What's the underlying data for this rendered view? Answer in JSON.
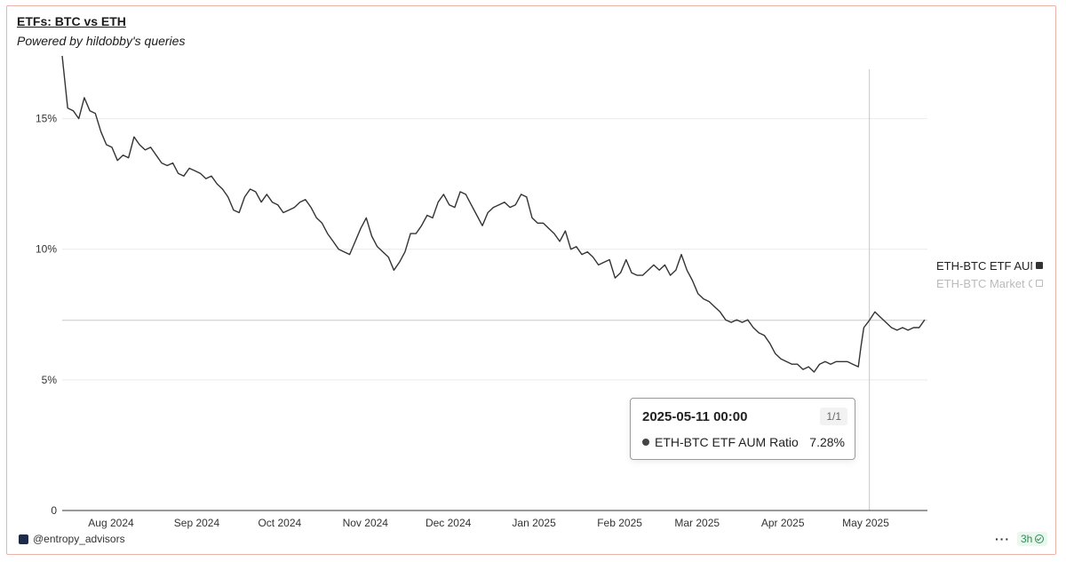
{
  "header": {
    "title": "ETFs: BTC vs ETH",
    "subtitle": "Powered by hildobby's queries"
  },
  "legend": {
    "items": [
      {
        "label": "ETH-BTC ETF AUM Ratio",
        "active": true
      },
      {
        "label": "ETH-BTC Market Cap Ratio",
        "active": false
      }
    ]
  },
  "tooltip": {
    "date": "2025-05-11 00:00",
    "page": "1/1",
    "series_name": "ETH-BTC ETF AUM Ratio",
    "value": "7.28%"
  },
  "footer": {
    "handle": "@entropy_advisors",
    "more": "···",
    "age": "3h"
  },
  "colors": {
    "line": "#333333",
    "grid": "#e9e9e9",
    "axis": "#333333",
    "crosshair": "#c8c8c8",
    "frame": "#eab4a8"
  },
  "chart_data": {
    "type": "line",
    "title": "ETFs: BTC vs ETH",
    "subtitle": "Powered by hildobby's queries",
    "xlabel": "",
    "ylabel": "",
    "ylim": [
      0,
      17.5
    ],
    "yticks": [
      0,
      5,
      10,
      15
    ],
    "ytick_labels": [
      "0",
      "5%",
      "10%",
      "15%"
    ],
    "xticks": [
      "2024-08-01",
      "2024-09-01",
      "2024-10-01",
      "2024-11-01",
      "2024-12-01",
      "2025-01-01",
      "2025-02-01",
      "2025-03-01",
      "2025-04-01",
      "2025-05-01"
    ],
    "xtick_labels": [
      "Aug 2024",
      "Sep 2024",
      "Oct 2024",
      "Nov 2024",
      "Dec 2024",
      "Jan 2025",
      "Feb 2025",
      "Mar 2025",
      "Apr 2025",
      "May 2025"
    ],
    "xlim": [
      "2024-07-23",
      "2025-06-01"
    ],
    "grid": true,
    "legend_position": "right",
    "series": [
      {
        "name": "ETH-BTC ETF AUM Ratio",
        "visible": true,
        "points": [
          [
            "2024-07-23",
            17.4
          ],
          [
            "2024-07-25",
            15.4
          ],
          [
            "2024-07-27",
            15.3
          ],
          [
            "2024-07-29",
            15.0
          ],
          [
            "2024-07-31",
            15.8
          ],
          [
            "2024-08-02",
            15.3
          ],
          [
            "2024-08-04",
            15.2
          ],
          [
            "2024-08-06",
            14.5
          ],
          [
            "2024-08-08",
            14.0
          ],
          [
            "2024-08-10",
            13.9
          ],
          [
            "2024-08-12",
            13.4
          ],
          [
            "2024-08-14",
            13.6
          ],
          [
            "2024-08-16",
            13.5
          ],
          [
            "2024-08-18",
            14.3
          ],
          [
            "2024-08-20",
            14.0
          ],
          [
            "2024-08-22",
            13.8
          ],
          [
            "2024-08-24",
            13.9
          ],
          [
            "2024-08-26",
            13.6
          ],
          [
            "2024-08-28",
            13.3
          ],
          [
            "2024-08-30",
            13.2
          ],
          [
            "2024-09-01",
            13.3
          ],
          [
            "2024-09-03",
            12.9
          ],
          [
            "2024-09-05",
            12.8
          ],
          [
            "2024-09-07",
            13.1
          ],
          [
            "2024-09-09",
            13.0
          ],
          [
            "2024-09-11",
            12.9
          ],
          [
            "2024-09-13",
            12.7
          ],
          [
            "2024-09-15",
            12.8
          ],
          [
            "2024-09-17",
            12.5
          ],
          [
            "2024-09-19",
            12.3
          ],
          [
            "2024-09-21",
            12.0
          ],
          [
            "2024-09-23",
            11.5
          ],
          [
            "2024-09-25",
            11.4
          ],
          [
            "2024-09-27",
            12.0
          ],
          [
            "2024-09-29",
            12.3
          ],
          [
            "2024-10-01",
            12.2
          ],
          [
            "2024-10-03",
            11.8
          ],
          [
            "2024-10-05",
            12.1
          ],
          [
            "2024-10-07",
            11.8
          ],
          [
            "2024-10-09",
            11.7
          ],
          [
            "2024-10-11",
            11.4
          ],
          [
            "2024-10-13",
            11.5
          ],
          [
            "2024-10-15",
            11.6
          ],
          [
            "2024-10-17",
            11.8
          ],
          [
            "2024-10-19",
            11.9
          ],
          [
            "2024-10-21",
            11.6
          ],
          [
            "2024-10-23",
            11.2
          ],
          [
            "2024-10-25",
            11.0
          ],
          [
            "2024-10-27",
            10.6
          ],
          [
            "2024-10-29",
            10.3
          ],
          [
            "2024-10-31",
            10.0
          ],
          [
            "2024-11-02",
            9.9
          ],
          [
            "2024-11-04",
            9.8
          ],
          [
            "2024-11-06",
            10.3
          ],
          [
            "2024-11-08",
            10.8
          ],
          [
            "2024-11-10",
            11.2
          ],
          [
            "2024-11-12",
            10.5
          ],
          [
            "2024-11-14",
            10.1
          ],
          [
            "2024-11-16",
            9.9
          ],
          [
            "2024-11-18",
            9.7
          ],
          [
            "2024-11-20",
            9.2
          ],
          [
            "2024-11-22",
            9.5
          ],
          [
            "2024-11-24",
            9.9
          ],
          [
            "2024-11-26",
            10.6
          ],
          [
            "2024-11-28",
            10.6
          ],
          [
            "2024-11-30",
            10.9
          ],
          [
            "2024-12-02",
            11.3
          ],
          [
            "2024-12-04",
            11.2
          ],
          [
            "2024-12-06",
            11.8
          ],
          [
            "2024-12-08",
            12.1
          ],
          [
            "2024-12-10",
            11.7
          ],
          [
            "2024-12-12",
            11.6
          ],
          [
            "2024-12-14",
            12.2
          ],
          [
            "2024-12-16",
            12.1
          ],
          [
            "2024-12-18",
            11.7
          ],
          [
            "2024-12-20",
            11.3
          ],
          [
            "2024-12-22",
            10.9
          ],
          [
            "2024-12-24",
            11.4
          ],
          [
            "2024-12-26",
            11.6
          ],
          [
            "2024-12-28",
            11.7
          ],
          [
            "2024-12-30",
            11.8
          ],
          [
            "2025-01-01",
            11.6
          ],
          [
            "2025-01-03",
            11.7
          ],
          [
            "2025-01-05",
            12.1
          ],
          [
            "2025-01-07",
            12.0
          ],
          [
            "2025-01-09",
            11.2
          ],
          [
            "2025-01-11",
            11.0
          ],
          [
            "2025-01-13",
            11.0
          ],
          [
            "2025-01-15",
            10.8
          ],
          [
            "2025-01-17",
            10.6
          ],
          [
            "2025-01-19",
            10.3
          ],
          [
            "2025-01-21",
            10.7
          ],
          [
            "2025-01-23",
            10.0
          ],
          [
            "2025-01-25",
            10.1
          ],
          [
            "2025-01-27",
            9.8
          ],
          [
            "2025-01-29",
            9.9
          ],
          [
            "2025-01-31",
            9.7
          ],
          [
            "2025-02-02",
            9.4
          ],
          [
            "2025-02-04",
            9.5
          ],
          [
            "2025-02-06",
            9.6
          ],
          [
            "2025-02-08",
            8.9
          ],
          [
            "2025-02-10",
            9.1
          ],
          [
            "2025-02-12",
            9.6
          ],
          [
            "2025-02-14",
            9.1
          ],
          [
            "2025-02-16",
            9.0
          ],
          [
            "2025-02-18",
            9.0
          ],
          [
            "2025-02-20",
            9.2
          ],
          [
            "2025-02-22",
            9.4
          ],
          [
            "2025-02-24",
            9.2
          ],
          [
            "2025-02-26",
            9.4
          ],
          [
            "2025-02-28",
            9.0
          ],
          [
            "2025-03-02",
            9.2
          ],
          [
            "2025-03-04",
            9.8
          ],
          [
            "2025-03-06",
            9.2
          ],
          [
            "2025-03-08",
            8.8
          ],
          [
            "2025-03-10",
            8.3
          ],
          [
            "2025-03-12",
            8.1
          ],
          [
            "2025-03-14",
            8.0
          ],
          [
            "2025-03-16",
            7.8
          ],
          [
            "2025-03-18",
            7.6
          ],
          [
            "2025-03-20",
            7.3
          ],
          [
            "2025-03-22",
            7.2
          ],
          [
            "2025-03-24",
            7.3
          ],
          [
            "2025-03-26",
            7.2
          ],
          [
            "2025-03-28",
            7.3
          ],
          [
            "2025-03-30",
            7.0
          ],
          [
            "2025-04-01",
            6.8
          ],
          [
            "2025-04-03",
            6.7
          ],
          [
            "2025-04-05",
            6.4
          ],
          [
            "2025-04-07",
            6.0
          ],
          [
            "2025-04-09",
            5.8
          ],
          [
            "2025-04-11",
            5.7
          ],
          [
            "2025-04-13",
            5.6
          ],
          [
            "2025-04-15",
            5.6
          ],
          [
            "2025-04-17",
            5.4
          ],
          [
            "2025-04-19",
            5.5
          ],
          [
            "2025-04-21",
            5.3
          ],
          [
            "2025-04-23",
            5.6
          ],
          [
            "2025-04-25",
            5.7
          ],
          [
            "2025-04-27",
            5.6
          ],
          [
            "2025-04-29",
            5.7
          ],
          [
            "2025-05-01",
            5.7
          ],
          [
            "2025-05-03",
            5.7
          ],
          [
            "2025-05-05",
            5.6
          ],
          [
            "2025-05-07",
            5.5
          ],
          [
            "2025-05-08",
            6.3
          ],
          [
            "2025-05-09",
            7.0
          ],
          [
            "2025-05-11",
            7.28
          ],
          [
            "2025-05-13",
            7.6
          ],
          [
            "2025-05-15",
            7.4
          ],
          [
            "2025-05-17",
            7.2
          ],
          [
            "2025-05-19",
            7.0
          ],
          [
            "2025-05-21",
            6.9
          ],
          [
            "2025-05-23",
            7.0
          ],
          [
            "2025-05-25",
            6.9
          ],
          [
            "2025-05-27",
            7.0
          ],
          [
            "2025-05-29",
            7.0
          ],
          [
            "2025-05-31",
            7.3
          ]
        ]
      },
      {
        "name": "ETH-BTC Market Cap Ratio",
        "visible": false,
        "points": []
      }
    ],
    "crosshair": {
      "x": "2025-05-11",
      "y": 7.28
    }
  }
}
